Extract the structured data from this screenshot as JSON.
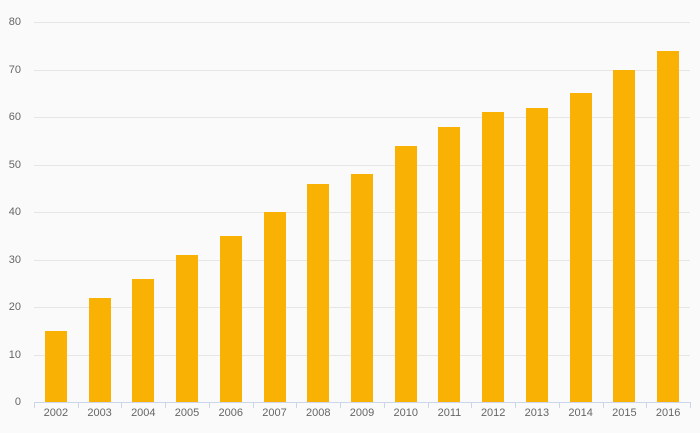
{
  "chart_data": {
    "type": "bar",
    "title": "",
    "xlabel": "",
    "ylabel": "",
    "categories": [
      "2002",
      "2003",
      "2004",
      "2005",
      "2006",
      "2007",
      "2008",
      "2009",
      "2010",
      "2011",
      "2012",
      "2013",
      "2014",
      "2015",
      "2016"
    ],
    "values": [
      15,
      22,
      26,
      31,
      35,
      40,
      46,
      48,
      54,
      58,
      61,
      62,
      65,
      70,
      74
    ],
    "ylim": [
      0,
      80
    ],
    "y_ticks": [
      0,
      10,
      20,
      30,
      40,
      50,
      60,
      70,
      80
    ],
    "grid": "horizontal-only",
    "legend": "none",
    "colors": {
      "bar": "#f9b104",
      "background": "#fafafa",
      "gridline": "#e6e6e6",
      "axis_line": "#ccd6eb",
      "tick": "#ccd6eb",
      "label": "#666666"
    }
  }
}
